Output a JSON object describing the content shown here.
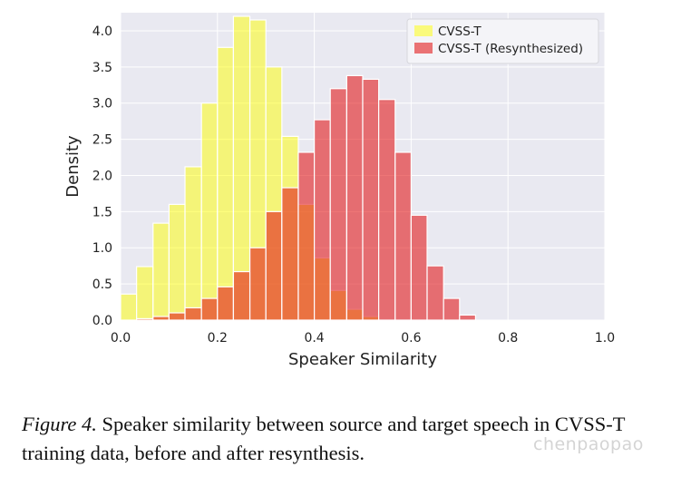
{
  "chart_data": {
    "type": "histogram",
    "xlabel": "Speaker Similarity",
    "ylabel": "Density",
    "xlim": [
      0.0,
      1.0
    ],
    "ylim": [
      0.0,
      4.25
    ],
    "xticks": [
      "0.0",
      "0.2",
      "0.4",
      "0.6",
      "0.8",
      "1.0"
    ],
    "yticks": [
      "0.0",
      "0.5",
      "1.0",
      "1.5",
      "2.0",
      "2.5",
      "3.0",
      "3.5",
      "4.0"
    ],
    "grid": true,
    "background": "#e9e9f1",
    "legend_position": "top-right",
    "bin_edges": [
      0.0,
      0.033,
      0.067,
      0.1,
      0.133,
      0.167,
      0.2,
      0.233,
      0.267,
      0.3,
      0.333,
      0.367,
      0.4,
      0.433,
      0.467,
      0.5,
      0.533,
      0.567,
      0.6,
      0.633,
      0.667,
      0.7,
      0.733,
      0.767
    ],
    "series": [
      {
        "name": "CVSS-T",
        "color": "#ffff00",
        "alpha": 0.5,
        "values": [
          0.36,
          0.74,
          1.34,
          1.6,
          2.12,
          3.0,
          3.77,
          4.2,
          4.15,
          3.5,
          2.54,
          1.6,
          0.86,
          0.41,
          0.15,
          0.05,
          0.0,
          0.0,
          0.0,
          0.0,
          0.0,
          0.0,
          0.0
        ]
      },
      {
        "name": "CVSS-T (Resynthesized)",
        "color": "#e31a1c",
        "alpha": 0.6,
        "values": [
          0.0,
          0.02,
          0.05,
          0.1,
          0.17,
          0.3,
          0.46,
          0.67,
          1.0,
          1.5,
          1.83,
          2.32,
          2.77,
          3.2,
          3.38,
          3.33,
          3.05,
          2.32,
          1.45,
          0.75,
          0.3,
          0.07,
          0.0
        ]
      }
    ]
  },
  "caption": {
    "label": "Figure 4.",
    "text": " Speaker similarity between source and target speech in CVSS-T training data, before and after resynthesis."
  },
  "watermark": "chenpaopao"
}
